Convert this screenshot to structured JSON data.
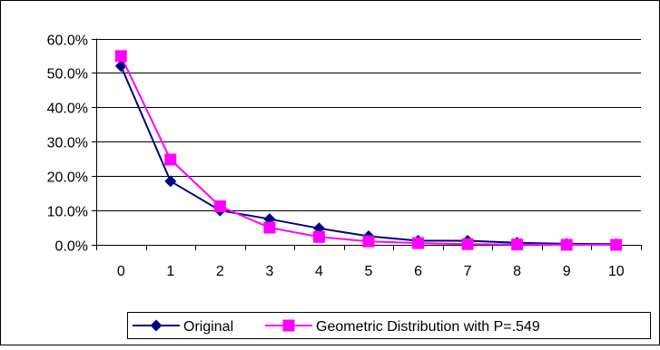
{
  "chart_data": {
    "type": "line",
    "categories": [
      "0",
      "1",
      "2",
      "3",
      "4",
      "5",
      "6",
      "7",
      "8",
      "9",
      "10"
    ],
    "series": [
      {
        "name": "Original",
        "color": "#000080",
        "marker": "diamond",
        "values": [
          52.0,
          18.5,
          10.0,
          7.5,
          4.8,
          2.5,
          1.2,
          1.2,
          0.6,
          0.3,
          0.2
        ]
      },
      {
        "name": "Geometric Distribution with P=.549",
        "color": "#FF00FF",
        "marker": "square",
        "values": [
          54.9,
          24.8,
          11.2,
          5.0,
          2.3,
          1.0,
          0.5,
          0.2,
          0.1,
          0.0,
          0.0
        ]
      }
    ],
    "y_ticks": [
      "0.0%",
      "10.0%",
      "20.0%",
      "30.0%",
      "40.0%",
      "50.0%",
      "60.0%"
    ],
    "ylim": [
      0,
      60
    ],
    "grid": true,
    "legend_position": "bottom"
  }
}
